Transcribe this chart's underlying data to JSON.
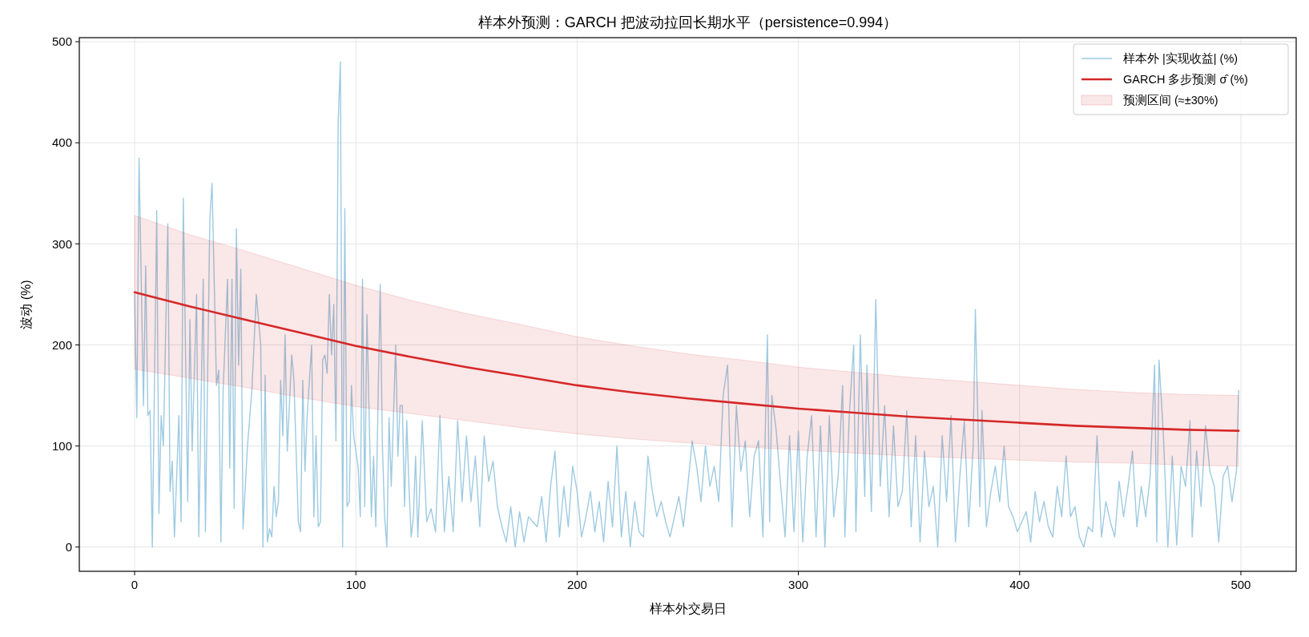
{
  "chart_data": {
    "type": "line",
    "title": "样本外预测：GARCH 把波动拉回长期水平（persistence=0.994）",
    "xlabel": "样本外交易日",
    "ylabel": "波动 (%)",
    "xlim": [
      -25,
      525
    ],
    "ylim": [
      -24,
      504
    ],
    "xticks": [
      0,
      100,
      200,
      300,
      400,
      500
    ],
    "yticks": [
      0,
      100,
      200,
      300,
      400,
      500
    ],
    "grid": true,
    "legend": "top right",
    "annotations": [
      "预测区间 (≈±30%)"
    ],
    "series": [
      {
        "name": "样本外 |实现收益| (%)",
        "color": "#9ecae1",
        "x": [
          0,
          1,
          2,
          4,
          5,
          6,
          7,
          8,
          10,
          11,
          12,
          13,
          15,
          16,
          17,
          18,
          20,
          21,
          22,
          24,
          25,
          26,
          28,
          29,
          31,
          32,
          34,
          35,
          37,
          38,
          39,
          40,
          42,
          43,
          44,
          45,
          46,
          47,
          48,
          49,
          51,
          53,
          55,
          57,
          58,
          59,
          60,
          61,
          62,
          63,
          64,
          65,
          66,
          67,
          68,
          69,
          71,
          72,
          73,
          74,
          75,
          76,
          77,
          78,
          80,
          81,
          82,
          83,
          84,
          85,
          86,
          87,
          88,
          89,
          90,
          91,
          92,
          93,
          94,
          95,
          96,
          97,
          98,
          99,
          101,
          102,
          103,
          104,
          105,
          107,
          108,
          109,
          111,
          112,
          113,
          114,
          115,
          116,
          118,
          119,
          120,
          121,
          122,
          123,
          124,
          125,
          126,
          127,
          128,
          130,
          132,
          134,
          136,
          138,
          140,
          142,
          144,
          146,
          148,
          150,
          152,
          154,
          156,
          158,
          160,
          162,
          164,
          166,
          168,
          170,
          172,
          174,
          176,
          178,
          180,
          182,
          184,
          186,
          188,
          190,
          192,
          194,
          196,
          198,
          200,
          202,
          204,
          206,
          208,
          210,
          212,
          214,
          216,
          218,
          220,
          222,
          224,
          226,
          228,
          230,
          232,
          234,
          236,
          238,
          240,
          242,
          244,
          246,
          248,
          250,
          252,
          254,
          256,
          258,
          260,
          262,
          264,
          266,
          268,
          270,
          272,
          274,
          276,
          278,
          280,
          282,
          284,
          286,
          287,
          288,
          290,
          292,
          294,
          296,
          298,
          300,
          302,
          304,
          306,
          308,
          310,
          312,
          314,
          316,
          318,
          320,
          321,
          323,
          325,
          326,
          328,
          330,
          331,
          333,
          335,
          337,
          339,
          341,
          343,
          345,
          347,
          349,
          351,
          353,
          355,
          357,
          359,
          361,
          363,
          365,
          367,
          369,
          371,
          373,
          375,
          377,
          379,
          380,
          382,
          383,
          385,
          387,
          389,
          391,
          393,
          395,
          397,
          399,
          401,
          403,
          405,
          407,
          409,
          411,
          413,
          415,
          417,
          419,
          421,
          423,
          425,
          427,
          429,
          431,
          433,
          435,
          437,
          439,
          441,
          443,
          445,
          447,
          449,
          451,
          453,
          455,
          457,
          459,
          461,
          462,
          463,
          465,
          467,
          469,
          471,
          473,
          475,
          477,
          478,
          480,
          482,
          484,
          486,
          488,
          490,
          492,
          494,
          496,
          498,
          499
        ],
        "values": [
          250,
          128,
          385,
          140,
          278,
          130,
          135,
          0,
          333,
          33,
          130,
          100,
          320,
          55,
          85,
          10,
          130,
          25,
          345,
          45,
          225,
          95,
          250,
          10,
          265,
          15,
          325,
          360,
          160,
          175,
          5,
          155,
          265,
          78,
          265,
          38,
          315,
          180,
          275,
          18,
          100,
          155,
          250,
          200,
          0,
          170,
          5,
          18,
          10,
          60,
          30,
          45,
          165,
          110,
          210,
          95,
          190,
          165,
          95,
          25,
          15,
          165,
          75,
          130,
          200,
          30,
          110,
          20,
          25,
          185,
          190,
          172,
          250,
          190,
          240,
          105,
          420,
          480,
          0,
          335,
          40,
          45,
          160,
          110,
          80,
          30,
          265,
          40,
          230,
          30,
          90,
          20,
          260,
          100,
          30,
          0,
          128,
          60,
          200,
          90,
          140,
          140,
          40,
          125,
          60,
          10,
          30,
          90,
          10,
          125,
          25,
          38,
          15,
          130,
          15,
          70,
          15,
          125,
          45,
          110,
          45,
          90,
          20,
          110,
          65,
          85,
          40,
          20,
          5,
          40,
          0,
          35,
          5,
          30,
          25,
          20,
          50,
          5,
          60,
          95,
          10,
          60,
          20,
          80,
          55,
          10,
          30,
          55,
          15,
          45,
          5,
          65,
          20,
          100,
          10,
          55,
          0,
          45,
          15,
          10,
          90,
          55,
          30,
          45,
          25,
          10,
          30,
          50,
          20,
          60,
          105,
          80,
          45,
          100,
          60,
          80,
          45,
          150,
          180,
          20,
          140,
          75,
          105,
          30,
          90,
          105,
          10,
          210,
          25,
          150,
          115,
          60,
          10,
          110,
          15,
          115,
          5,
          90,
          130,
          10,
          120,
          0,
          130,
          30,
          70,
          160,
          10,
          130,
          200,
          15,
          210,
          50,
          180,
          35,
          245,
          60,
          140,
          30,
          120,
          40,
          55,
          135,
          20,
          110,
          5,
          95,
          40,
          60,
          0,
          110,
          45,
          130,
          5,
          70,
          125,
          20,
          100,
          235,
          40,
          135,
          20,
          55,
          80,
          45,
          100,
          40,
          30,
          15,
          25,
          35,
          5,
          55,
          25,
          45,
          20,
          10,
          60,
          30,
          90,
          30,
          40,
          10,
          0,
          20,
          15,
          110,
          10,
          45,
          25,
          10,
          65,
          30,
          60,
          95,
          20,
          60,
          30,
          70,
          180,
          5,
          185,
          110,
          0,
          90,
          2,
          80,
          60,
          125,
          10,
          95,
          40,
          120,
          75,
          60,
          5,
          70,
          80,
          45,
          75,
          155
        ]
      },
      {
        "name": "GARCH 多步预测 σ̂ (%)",
        "color": "#d62728",
        "x": [
          0,
          25,
          50,
          75,
          100,
          125,
          150,
          175,
          200,
          225,
          250,
          275,
          300,
          325,
          350,
          375,
          400,
          425,
          450,
          475,
          499
        ],
        "values": [
          252,
          238,
          225,
          212,
          199,
          188,
          178,
          169,
          160,
          153,
          147,
          142,
          137,
          133,
          129,
          126,
          123,
          120,
          118,
          116,
          115
        ],
        "lower": [
          176,
          167,
          158,
          148,
          139,
          132,
          125,
          118,
          112,
          107,
          103,
          99,
          96,
          93,
          90,
          88,
          86,
          84,
          83,
          81,
          80
        ],
        "upper": [
          328,
          309,
          293,
          276,
          259,
          244,
          231,
          220,
          208,
          199,
          191,
          185,
          178,
          173,
          168,
          164,
          160,
          156,
          153,
          151,
          150
        ]
      }
    ]
  }
}
